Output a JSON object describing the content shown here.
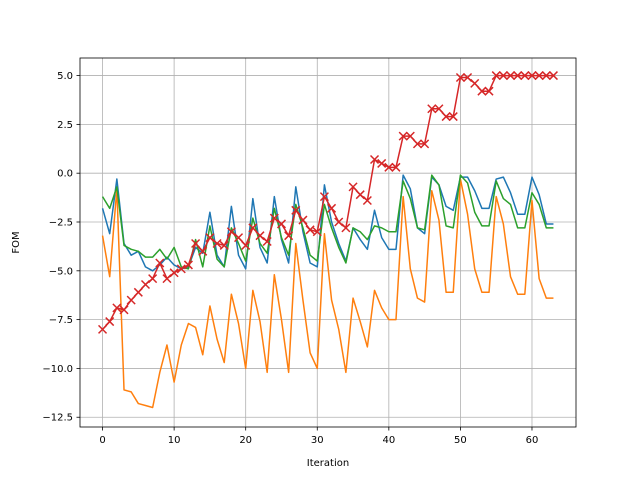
{
  "chart_data": {
    "type": "line",
    "title": "",
    "xlabel": "Iteration",
    "ylabel": "FOM",
    "xlim": [
      -3.15,
      66.15
    ],
    "ylim": [
      -13.0,
      5.9
    ],
    "xticks": [
      0,
      10,
      20,
      30,
      40,
      50,
      60
    ],
    "yticks": [
      -12.5,
      -10.0,
      -7.5,
      -5.0,
      -2.5,
      0.0,
      2.5,
      5.0
    ],
    "xtick_labels": [
      "0",
      "10",
      "20",
      "30",
      "40",
      "50",
      "60"
    ],
    "ytick_labels": [
      "−12.5",
      "−10.0",
      "−7.5",
      "−5.0",
      "−2.5",
      "0.0",
      "2.5",
      "5.0"
    ],
    "grid": true,
    "series": [
      {
        "color": "#1f77b4",
        "marker": "none",
        "values": [
          -1.8,
          -3.1,
          -0.3,
          -3.6,
          -4.2,
          -4.0,
          -4.8,
          -5.0,
          -4.7,
          -4.3,
          -4.7,
          -4.9,
          -4.8,
          -3.8,
          -4.1,
          -2.0,
          -4.2,
          -4.8,
          -1.7,
          -4.2,
          -4.9,
          -1.3,
          -3.8,
          -4.6,
          -1.2,
          -3.4,
          -4.6,
          -0.7,
          -3.0,
          -4.6,
          -4.8,
          -0.6,
          -2.5,
          -3.6,
          -4.5,
          -2.8,
          -3.4,
          -3.9,
          -1.9,
          -3.3,
          -3.9,
          -3.9,
          -0.1,
          -0.8,
          -2.8,
          -3.1,
          -0.2,
          -0.6,
          -1.7,
          -1.9,
          -0.2,
          -0.2,
          -0.9,
          -1.8,
          -1.8,
          -0.3,
          -0.2,
          -1.0,
          -2.1,
          -2.1,
          -0.2,
          -1.1,
          -2.6,
          -2.6
        ]
      },
      {
        "color": "#ff7f0e",
        "marker": "none",
        "values": [
          -3.2,
          -5.3,
          -0.8,
          -11.1,
          -11.2,
          -11.8,
          -11.9,
          -12.0,
          -10.2,
          -8.8,
          -10.7,
          -8.8,
          -7.7,
          -7.9,
          -9.3,
          -6.8,
          -8.5,
          -9.7,
          -6.2,
          -7.7,
          -10.0,
          -6.0,
          -7.6,
          -10.2,
          -5.2,
          -7.5,
          -10.2,
          -3.6,
          -6.5,
          -9.2,
          -10.0,
          -3.1,
          -6.5,
          -8.0,
          -10.2,
          -6.4,
          -7.6,
          -8.9,
          -6.0,
          -6.9,
          -7.5,
          -7.5,
          -1.2,
          -4.9,
          -6.4,
          -6.6,
          -0.9,
          -2.4,
          -6.1,
          -6.1,
          -0.3,
          -2.1,
          -4.9,
          -6.1,
          -6.1,
          -1.2,
          -2.6,
          -5.3,
          -6.2,
          -6.2,
          -1.4,
          -5.4,
          -6.4,
          -6.4
        ]
      },
      {
        "color": "#2ca02c",
        "marker": "none",
        "values": [
          -1.2,
          -1.8,
          -0.7,
          -3.7,
          -3.9,
          -4.0,
          -4.3,
          -4.3,
          -3.9,
          -4.4,
          -3.8,
          -4.8,
          -4.9,
          -3.4,
          -4.8,
          -2.7,
          -4.4,
          -4.8,
          -2.8,
          -3.6,
          -4.5,
          -2.3,
          -3.6,
          -4.1,
          -1.8,
          -3.3,
          -4.2,
          -1.6,
          -2.8,
          -4.2,
          -4.5,
          -1.6,
          -2.8,
          -3.8,
          -4.6,
          -2.8,
          -3.0,
          -3.4,
          -2.7,
          -2.8,
          -3.0,
          -3.0,
          -0.4,
          -1.3,
          -2.8,
          -2.9,
          -0.1,
          -0.6,
          -2.7,
          -2.8,
          -0.1,
          -0.5,
          -2.0,
          -2.7,
          -2.7,
          -0.4,
          -1.3,
          -1.6,
          -2.8,
          -2.8,
          -1.0,
          -1.6,
          -2.8,
          -2.8
        ]
      },
      {
        "color": "#d62728",
        "marker": "x",
        "values": [
          -8.0,
          -7.6,
          -6.9,
          -7.0,
          -6.5,
          -6.1,
          -5.7,
          -5.4,
          -4.6,
          -5.4,
          -5.1,
          -4.9,
          -4.7,
          -3.6,
          -4.0,
          -3.3,
          -3.6,
          -3.7,
          -3.0,
          -3.3,
          -3.7,
          -2.8,
          -3.2,
          -3.5,
          -2.3,
          -2.6,
          -3.2,
          -1.9,
          -2.4,
          -2.9,
          -3.0,
          -1.2,
          -1.8,
          -2.5,
          -2.8,
          -0.7,
          -1.1,
          -1.4,
          0.7,
          0.5,
          0.3,
          0.3,
          1.9,
          1.9,
          1.5,
          1.5,
          3.3,
          3.3,
          2.9,
          2.9,
          4.9,
          4.9,
          4.6,
          4.2,
          4.2,
          5.0,
          5.0,
          5.0,
          5.0,
          5.0,
          5.0,
          5.0,
          5.0,
          5.0
        ]
      }
    ]
  }
}
